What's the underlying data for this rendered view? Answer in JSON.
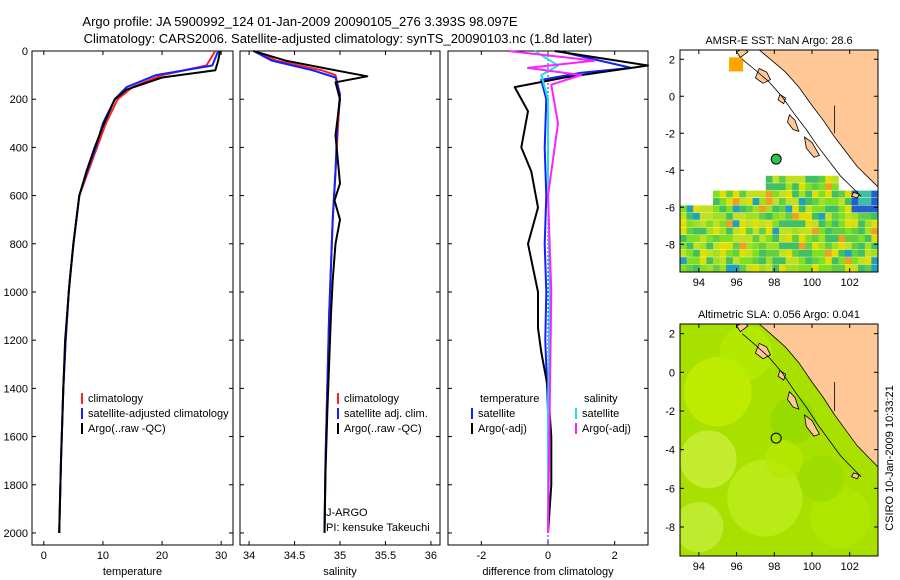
{
  "header": {
    "line1": "Argo profile: JA 5900992_124 01-Jan-2009 20090105_276 3.393S 98.097E",
    "line2": "Climatology: CARS2006. Satellite-adjusted climatology: synTS_20090103.nc (1.8d later)"
  },
  "footer": {
    "stamp": "CSIRO 10-Jan-2009 10:33:21"
  },
  "colors": {
    "climatology": "#ff2020",
    "satellite": "#1020ff",
    "argo": "#000000",
    "salinity_satellite": "#20e0e0",
    "salinity_argo": "#ff20ff",
    "land": "#ffc896",
    "sla_sea": "#a8e000"
  },
  "chart_data": [
    {
      "type": "line",
      "xlabel": "temperature",
      "ylabel": "",
      "xlim": [
        -2,
        32
      ],
      "ylim": [
        2050,
        0
      ],
      "xticks": [
        0,
        10,
        20,
        30
      ],
      "yticks": [
        0,
        200,
        400,
        600,
        800,
        1000,
        1200,
        1400,
        1600,
        1800,
        2000
      ],
      "legend": [
        "climatology",
        "satellite-adjusted climatology",
        "Argo(..raw -QC)"
      ],
      "series": [
        {
          "name": "climatology",
          "color": "#ff2020",
          "x": [
            29.0,
            27.5,
            20.0,
            15.0,
            12.5,
            10.5,
            9.0,
            7.5,
            6.0,
            5.0,
            4.2,
            3.7,
            3.3,
            2.9,
            2.6
          ],
          "y": [
            0,
            60,
            100,
            150,
            200,
            300,
            400,
            500,
            600,
            800,
            1000,
            1200,
            1400,
            1700,
            2000
          ]
        },
        {
          "name": "satellite-adjusted climatology",
          "color": "#1020ff",
          "x": [
            29.5,
            28.5,
            19.0,
            14.0,
            12.0,
            10.0,
            8.8,
            7.3,
            6.0,
            5.0,
            4.2,
            3.7,
            3.3,
            2.9,
            2.6
          ],
          "y": [
            0,
            60,
            100,
            150,
            200,
            300,
            400,
            500,
            600,
            800,
            1000,
            1200,
            1400,
            1700,
            2000
          ]
        },
        {
          "name": "Argo(..raw -QC)",
          "color": "#000000",
          "x": [
            29.8,
            29.5,
            29.0,
            20.0,
            14.0,
            12.0,
            10.2,
            8.6,
            7.2,
            6.0,
            5.0,
            4.4,
            3.6,
            3.3,
            2.9,
            2.6
          ],
          "y": [
            0,
            40,
            80,
            110,
            160,
            200,
            300,
            400,
            500,
            600,
            800,
            950,
            1200,
            1400,
            1700,
            2000
          ]
        }
      ]
    },
    {
      "type": "line",
      "xlabel": "salinity",
      "xlim": [
        33.9,
        36.1
      ],
      "ylim": [
        2050,
        0
      ],
      "xticks": [
        34,
        34.5,
        35,
        35.5,
        36
      ],
      "legend": [
        "climatology",
        "satellite adj. clim.",
        "Argo(..raw -QC)"
      ],
      "annotation": [
        "J-ARGO",
        "PI: kensuke Takeuchi"
      ],
      "series": [
        {
          "name": "climatology",
          "color": "#ff2020",
          "x": [
            34.05,
            34.3,
            34.8,
            34.95,
            35.0,
            34.98,
            34.95,
            34.92,
            34.9,
            34.88,
            34.86,
            34.84,
            34.83
          ],
          "y": [
            0,
            40,
            80,
            100,
            180,
            300,
            500,
            700,
            900,
            1100,
            1400,
            1700,
            2000
          ]
        },
        {
          "name": "satellite adj. clim.",
          "color": "#1020ff",
          "x": [
            34.05,
            34.25,
            34.7,
            34.95,
            35.0,
            34.97,
            34.95,
            34.92,
            34.9,
            34.88,
            34.86,
            34.84,
            34.83
          ],
          "y": [
            0,
            40,
            80,
            110,
            180,
            300,
            500,
            700,
            900,
            1100,
            1400,
            1700,
            2000
          ]
        },
        {
          "name": "Argo(..raw -QC)",
          "color": "#000000",
          "x": [
            34.05,
            34.4,
            34.95,
            35.3,
            34.95,
            35.0,
            34.95,
            35.0,
            34.94,
            35.0,
            34.95,
            34.92,
            34.9,
            34.88,
            34.86,
            34.84,
            34.83
          ],
          "y": [
            0,
            40,
            80,
            105,
            130,
            200,
            350,
            550,
            620,
            700,
            800,
            950,
            1100,
            1300,
            1500,
            1750,
            2000
          ]
        }
      ]
    },
    {
      "type": "line",
      "xlabel": "difference from climatology",
      "xlim": [
        -3,
        3
      ],
      "ylim": [
        2050,
        0
      ],
      "xticks": [
        -2,
        0,
        2
      ],
      "legend": [
        "temperature",
        "satellite",
        "Argo(-adj)",
        "salinity",
        "satellite",
        "Argo(-adj)"
      ],
      "series": [
        {
          "name": "temperature satellite",
          "color": "#1020ff",
          "x": [
            0.3,
            2.5,
            1.0,
            -0.2,
            -0.05,
            -0.1,
            -0.05,
            -0.1,
            -0.05,
            -0.08,
            0.0,
            0.0,
            0.0
          ],
          "y": [
            0,
            70,
            90,
            120,
            200,
            400,
            600,
            800,
            1000,
            1200,
            1500,
            1800,
            2000
          ]
        },
        {
          "name": "temperature Argo(-adj)",
          "color": "#000000",
          "x": [
            0.2,
            3.0,
            2.0,
            0.5,
            -1.0,
            -0.6,
            -0.8,
            -0.5,
            -0.3,
            -0.6,
            -0.3,
            -0.3,
            -0.2,
            0.0,
            0.1,
            0.1,
            0.0
          ],
          "y": [
            0,
            60,
            80,
            110,
            150,
            250,
            400,
            500,
            650,
            800,
            1000,
            1150,
            1250,
            1400,
            1600,
            1800,
            2000
          ]
        },
        {
          "name": "salinity satellite",
          "color": "#20e0e0",
          "x": [
            -0.4,
            0.3,
            -0.2,
            0.0,
            0.0,
            0.05,
            0.0,
            0.0
          ],
          "y": [
            0,
            60,
            100,
            200,
            500,
            1000,
            1500,
            2000
          ]
        },
        {
          "name": "salinity Argo(-adj)",
          "color": "#ff20ff",
          "x": [
            -1.2,
            1.4,
            -0.6,
            1.0,
            0.1,
            0.3,
            0.0,
            0.1,
            0.0
          ],
          "y": [
            0,
            40,
            70,
            100,
            140,
            300,
            600,
            1000,
            2000
          ]
        }
      ]
    },
    {
      "type": "heatmap",
      "title": "AMSR-E SST: NaN Argo: 28.6",
      "xlim": [
        93,
        103.5
      ],
      "ylim": [
        -9.5,
        2.5
      ],
      "xticks": [
        94,
        96,
        98,
        100,
        102
      ],
      "yticks": [
        2,
        0,
        -2,
        -4,
        -6,
        -8
      ],
      "argo_position": {
        "lon": 98.1,
        "lat": -3.4
      }
    },
    {
      "type": "heatmap",
      "title": "Altimetric SLA: 0.056 Argo: 0.041",
      "xlim": [
        93,
        103.5
      ],
      "ylim": [
        -9.5,
        2.5
      ],
      "xticks": [
        94,
        96,
        98,
        100,
        102
      ],
      "yticks": [
        2,
        0,
        -2,
        -4,
        -6,
        -8
      ],
      "argo_position": {
        "lon": 98.1,
        "lat": -3.4
      }
    }
  ]
}
